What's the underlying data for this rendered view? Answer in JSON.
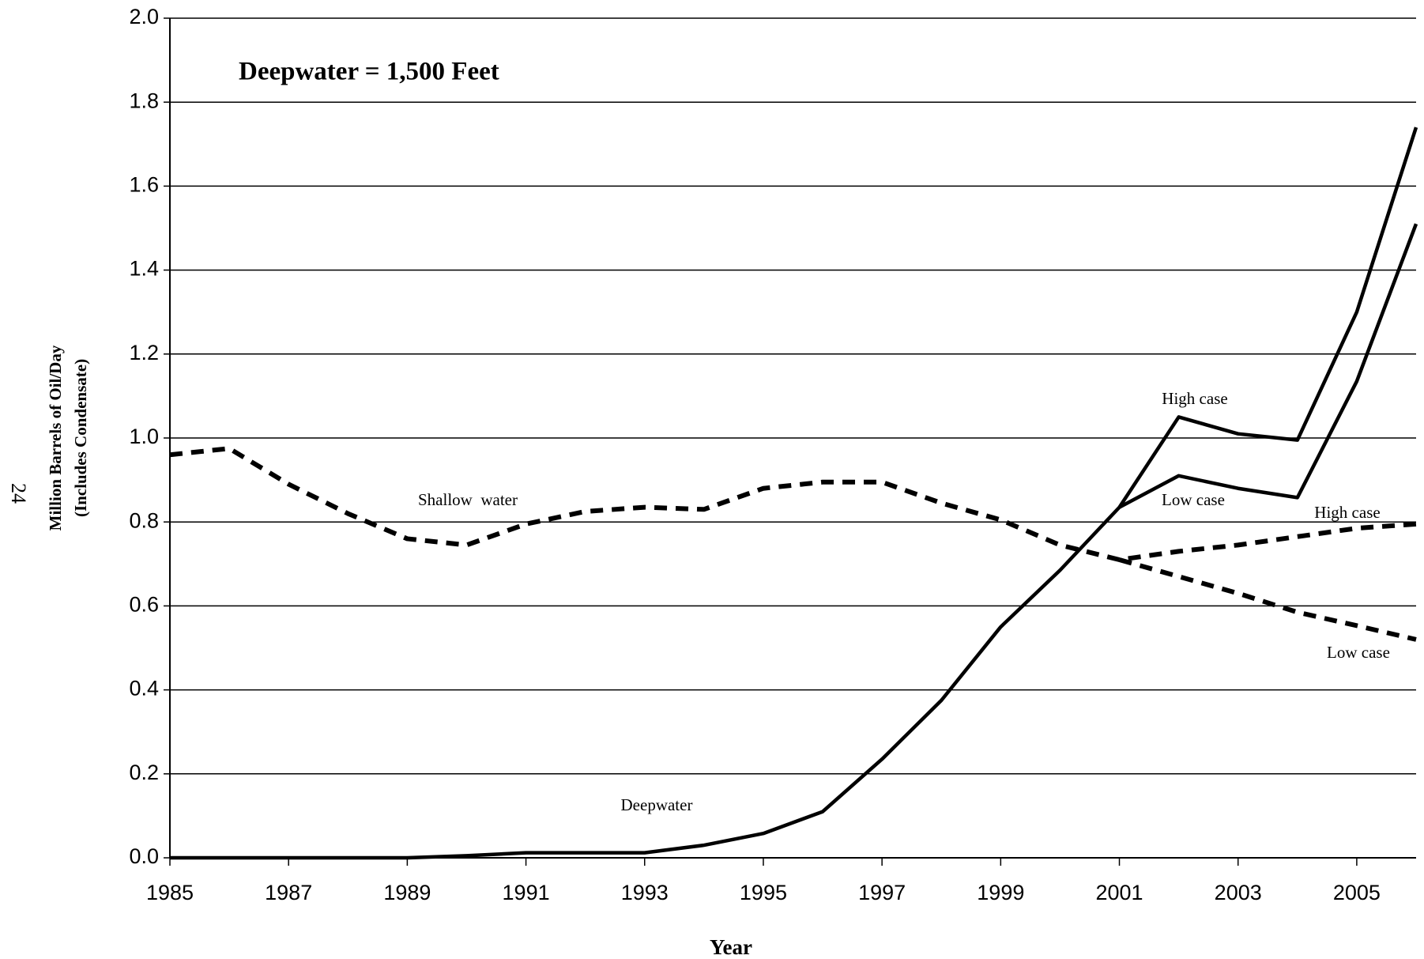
{
  "chart_data": {
    "type": "line",
    "title": "Deepwater = 1,500 Feet",
    "page_number": "24",
    "y_label": [
      "Million Barrels of Oil/Day",
      "(Includes Condensate)"
    ],
    "x_label": "Year",
    "annotations": [
      "Deepwater",
      "Shallow  water",
      "High case",
      "Low case",
      "High case",
      "Low case"
    ],
    "x": [
      1985,
      1986,
      1987,
      1988,
      1989,
      1990,
      1991,
      1992,
      1993,
      1994,
      1995,
      1996,
      1997,
      1998,
      1999,
      2000,
      2001,
      2002,
      2003,
      2004,
      2005,
      2006
    ],
    "series": [
      {
        "color": "#000000",
        "line_style": "solid",
        "values": [
          0,
          0,
          0,
          0,
          0,
          0.005,
          0.012,
          0.012,
          0.012,
          0.03,
          0.058,
          0.11,
          0.235,
          0.375,
          0.55,
          0.685,
          0.835,
          1.05,
          1.01,
          0.995,
          1.3,
          1.74
        ]
      },
      {
        "color": "#000000",
        "line_style": "solid",
        "values": [
          null,
          null,
          null,
          null,
          null,
          null,
          null,
          null,
          null,
          null,
          null,
          null,
          null,
          null,
          null,
          null,
          0.835,
          0.91,
          0.88,
          0.858,
          1.135,
          1.51
        ]
      },
      {
        "color": "#000000",
        "line_style": "dashed",
        "values": [
          0.96,
          0.975,
          0.89,
          0.82,
          0.76,
          0.745,
          0.795,
          0.825,
          0.835,
          0.83,
          0.88,
          0.895,
          0.895,
          0.845,
          0.805,
          0.745,
          0.71,
          0.73,
          0.745,
          0.765,
          0.785,
          0.795
        ]
      },
      {
        "color": "#000000",
        "line_style": "dashed",
        "values": [
          null,
          null,
          null,
          null,
          null,
          null,
          null,
          null,
          null,
          null,
          null,
          null,
          null,
          null,
          null,
          null,
          0.71,
          0.67,
          0.63,
          0.585,
          0.553,
          0.52
        ]
      }
    ],
    "xlim": [
      1985,
      2006
    ],
    "xticks": [
      1985,
      1987,
      1989,
      1991,
      1993,
      1995,
      1997,
      1999,
      2001,
      2003,
      2005
    ],
    "ylim": [
      0,
      2
    ],
    "yticks": [
      {
        "value": 0,
        "label": "0.0"
      },
      {
        "value": 0.2,
        "label": "0.2"
      },
      {
        "value": 0.4,
        "label": "0.4"
      },
      {
        "value": 0.6,
        "label": "0.6"
      },
      {
        "value": 0.8,
        "label": "0.8"
      },
      {
        "value": 1,
        "label": "1.0"
      },
      {
        "value": 1.2,
        "label": "1.2"
      },
      {
        "value": 1.4,
        "label": "1.4"
      },
      {
        "value": 1.6,
        "label": "1.6"
      },
      {
        "value": 1.8,
        "label": "1.8"
      },
      {
        "value": 2,
        "label": "2.0"
      }
    ],
    "grid": true
  }
}
